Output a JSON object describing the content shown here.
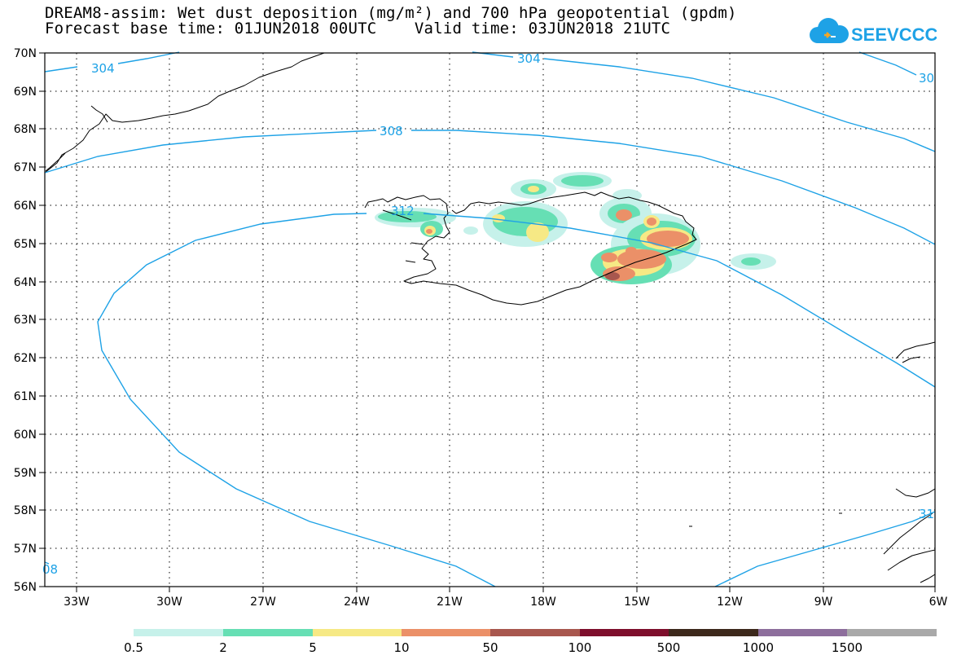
{
  "title_line1": "DREAM8-assim: Wet dust deposition (mg/m²) and 700 hPa geopotential (gpdm)",
  "title_line2": "Forecast base time: 01JUN2018 00UTC    Valid time: 03JUN2018 21UTC",
  "logo_text": "SEEVCCC",
  "lat_labels": [
    "70N",
    "69N",
    "68N",
    "67N",
    "66N",
    "65N",
    "64N",
    "63N",
    "62N",
    "61N",
    "60N",
    "59N",
    "58N",
    "57N",
    "56N"
  ],
  "lon_labels": [
    "33W",
    "30W",
    "27W",
    "24W",
    "21W",
    "18W",
    "15W",
    "12W",
    "9W",
    "6W"
  ],
  "contour_labels": [
    "304",
    "304",
    "30",
    "308",
    "312",
    "08",
    "31"
  ],
  "colorbar": {
    "labels": [
      "0.5",
      "2",
      "5",
      "10",
      "50",
      "100",
      "500",
      "1000",
      "1500"
    ],
    "colors": [
      "#c6f1ea",
      "#66dfb4",
      "#f6e985",
      "#eb9068",
      "#a8574e",
      "#7e0e2c",
      "#3d291c",
      "#8d6e9c",
      "#a9a9a9"
    ]
  },
  "colors": {
    "contour": "#1ea2e6",
    "coast": "#000000",
    "grid": "#000000"
  }
}
